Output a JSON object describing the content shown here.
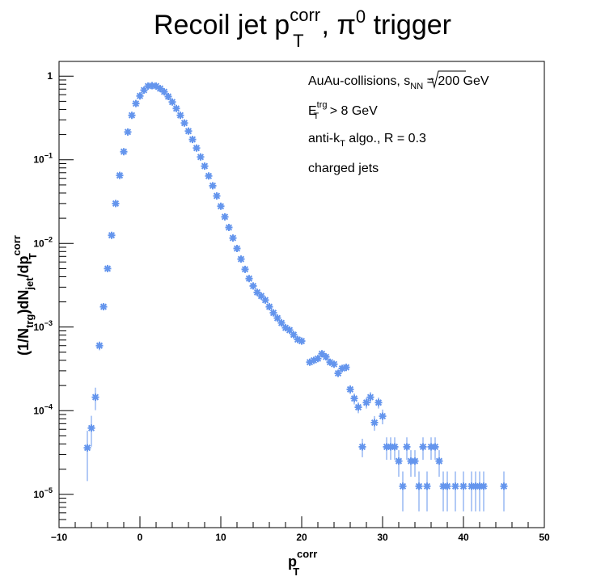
{
  "chart_data": {
    "type": "scatter",
    "title": {
      "base": "Recoil jet p",
      "sup": "corr",
      "sub": "T",
      "tail1": ", π",
      "sup2": "0",
      "tail2": " trigger"
    },
    "xlabel": {
      "base": "p",
      "sup": "corr",
      "sub": "T"
    },
    "ylabel": {
      "p1": "(1/N",
      "s1": "trg",
      "p2": ")dN",
      "s2": "jet",
      "p3": "/dp",
      "sup3": "corr",
      "s3": "T"
    },
    "xlim": [
      -10,
      50
    ],
    "ylim": [
      4e-06,
      1.5
    ],
    "log_y": true,
    "grid": false,
    "marker_color": "#6495ed",
    "x_ticks": [
      "−10",
      "0",
      "10",
      "20",
      "30",
      "40",
      "50"
    ],
    "y_ticks": [
      {
        "value": 1,
        "base": "1",
        "exp": ""
      },
      {
        "value": 0.1,
        "base": "10",
        "exp": "−1"
      },
      {
        "value": 0.01,
        "base": "10",
        "exp": "−2"
      },
      {
        "value": 0.001,
        "base": "10",
        "exp": "−3"
      },
      {
        "value": 0.0001,
        "base": "10",
        "exp": "−4"
      },
      {
        "value": 1e-05,
        "base": "10",
        "exp": "−5"
      }
    ],
    "annotations": {
      "line1_prefix": "AuAu-collisions, ",
      "line1_s": "s",
      "line1_sub": "NN",
      "line1_suffix": " = 200 GeV",
      "line2_base": "E",
      "line2_sup": "trg",
      "line2_sub": "T",
      "line2_suffix": " > 8 GeV",
      "line3_prefix": "anti-k",
      "line3_sub": "T",
      "line3_suffix": " algo., R = 0.3",
      "line4": "charged jets"
    },
    "series": [
      {
        "points": [
          [
            -6.5,
            3.6e-05,
            0.6
          ],
          [
            -6.0,
            6.2e-05,
            0.4
          ],
          [
            -5.5,
            0.000145,
            0.3
          ],
          [
            -5.0,
            0.0006,
            0.12
          ],
          [
            -4.5,
            0.00175,
            0.06
          ],
          [
            -4.0,
            0.005,
            0.04
          ],
          [
            -3.5,
            0.0125,
            0.03
          ],
          [
            -3.0,
            0.03,
            0.02
          ],
          [
            -2.5,
            0.065,
            0.015
          ],
          [
            -2.0,
            0.125,
            0.01
          ],
          [
            -1.5,
            0.215,
            0.01
          ],
          [
            -1.0,
            0.34,
            0.01
          ],
          [
            -0.5,
            0.47,
            0.01
          ],
          [
            0.0,
            0.58,
            0.01
          ],
          [
            0.5,
            0.68,
            0.01
          ],
          [
            1.0,
            0.76,
            0.01
          ],
          [
            1.5,
            0.77,
            0.01
          ],
          [
            2.0,
            0.76,
            0.01
          ],
          [
            2.5,
            0.71,
            0.01
          ],
          [
            3.0,
            0.65,
            0.01
          ],
          [
            3.5,
            0.57,
            0.01
          ],
          [
            4.0,
            0.49,
            0.01
          ],
          [
            4.5,
            0.41,
            0.01
          ],
          [
            5.0,
            0.34,
            0.01
          ],
          [
            5.5,
            0.275,
            0.01
          ],
          [
            6.0,
            0.22,
            0.01
          ],
          [
            6.5,
            0.175,
            0.01
          ],
          [
            7.0,
            0.138,
            0.01
          ],
          [
            7.5,
            0.108,
            0.01
          ],
          [
            8.0,
            0.084,
            0.01
          ],
          [
            8.5,
            0.064,
            0.01
          ],
          [
            9.0,
            0.049,
            0.01
          ],
          [
            9.5,
            0.037,
            0.01
          ],
          [
            10.0,
            0.0278,
            0.01
          ],
          [
            10.5,
            0.0208,
            0.01
          ],
          [
            11.0,
            0.0155,
            0.01
          ],
          [
            11.5,
            0.0116,
            0.01
          ],
          [
            12.0,
            0.0087,
            0.012
          ],
          [
            12.5,
            0.0065,
            0.015
          ],
          [
            13.0,
            0.0049,
            0.015
          ],
          [
            13.5,
            0.0038,
            0.02
          ],
          [
            14.0,
            0.0031,
            0.02
          ],
          [
            14.5,
            0.0026,
            0.025
          ],
          [
            15.0,
            0.00235,
            0.03
          ],
          [
            15.5,
            0.0021,
            0.03
          ],
          [
            16.0,
            0.00175,
            0.03
          ],
          [
            16.5,
            0.00148,
            0.035
          ],
          [
            17.0,
            0.00128,
            0.035
          ],
          [
            17.5,
            0.00112,
            0.04
          ],
          [
            18.0,
            0.00098,
            0.045
          ],
          [
            18.5,
            0.00092,
            0.05
          ],
          [
            19.0,
            0.00081,
            0.05
          ],
          [
            19.5,
            0.00071,
            0.06
          ],
          [
            20.0,
            0.00068,
            0.06
          ],
          [
            21.0,
            0.00038,
            0.08
          ],
          [
            21.5,
            0.0004,
            0.08
          ],
          [
            22.0,
            0.00042,
            0.08
          ],
          [
            22.5,
            0.00048,
            0.08
          ],
          [
            23.0,
            0.00044,
            0.08
          ],
          [
            23.5,
            0.00038,
            0.09
          ],
          [
            24.0,
            0.00036,
            0.09
          ],
          [
            24.5,
            0.00028,
            0.1
          ],
          [
            25.0,
            0.00032,
            0.1
          ],
          [
            25.5,
            0.00033,
            0.1
          ],
          [
            26.0,
            0.00018,
            0.12
          ],
          [
            26.5,
            0.00014,
            0.15
          ],
          [
            27.0,
            0.00011,
            0.15
          ],
          [
            27.5,
            3.7e-05,
            0.25
          ],
          [
            28.0,
            0.000125,
            0.15
          ],
          [
            28.5,
            0.000145,
            0.15
          ],
          [
            29.0,
            7.2e-05,
            0.2
          ],
          [
            29.5,
            0.000125,
            0.15
          ],
          [
            30.0,
            8.6e-05,
            0.2
          ],
          [
            30.5,
            3.7e-05,
            0.3
          ],
          [
            31.0,
            3.7e-05,
            0.3
          ],
          [
            31.5,
            3.7e-05,
            0.3
          ],
          [
            32.0,
            2.5e-05,
            0.35
          ],
          [
            32.5,
            1.25e-05,
            0.5
          ],
          [
            33.0,
            3.7e-05,
            0.3
          ],
          [
            33.5,
            2.5e-05,
            0.35
          ],
          [
            34.0,
            2.5e-05,
            0.35
          ],
          [
            34.5,
            1.25e-05,
            0.5
          ],
          [
            35.0,
            3.7e-05,
            0.3
          ],
          [
            35.5,
            1.25e-05,
            0.5
          ],
          [
            36.0,
            3.7e-05,
            0.3
          ],
          [
            36.5,
            3.7e-05,
            0.3
          ],
          [
            37.0,
            2.5e-05,
            0.35
          ],
          [
            37.5,
            1.25e-05,
            0.5
          ],
          [
            38.0,
            1.25e-05,
            0.5
          ],
          [
            39.0,
            1.25e-05,
            0.5
          ],
          [
            40.0,
            1.25e-05,
            0.5
          ],
          [
            41.0,
            1.25e-05,
            0.5
          ],
          [
            41.5,
            1.25e-05,
            0.5
          ],
          [
            42.0,
            1.25e-05,
            0.5
          ],
          [
            42.5,
            1.25e-05,
            0.5
          ],
          [
            45.0,
            1.25e-05,
            0.5
          ]
        ]
      }
    ]
  }
}
